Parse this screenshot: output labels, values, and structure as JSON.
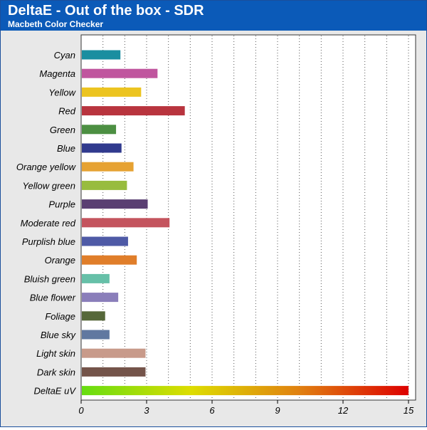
{
  "header": {
    "title": "DeltaE - Out of the box - SDR",
    "subtitle": "Macbeth Color Checker"
  },
  "colors": {
    "header_bg": "#0b5ab8",
    "plot_bg": "#ffffff",
    "frame_bg": "#e8e8e8",
    "grid": "#555555",
    "scale_gradient": [
      "#66dd11",
      "#dddd00",
      "#e08010",
      "#dd0000"
    ]
  },
  "chart_data": {
    "type": "bar",
    "orientation": "horizontal",
    "title": "DeltaE - Out of the box - SDR",
    "subtitle": "Macbeth Color Checker",
    "xlabel": "",
    "ylabel": "",
    "xlim": [
      0,
      15
    ],
    "xticks": [
      0,
      3,
      6,
      9,
      12,
      15
    ],
    "grid": "vertical dotted",
    "categories": [
      "Cyan",
      "Magenta",
      "Yellow",
      "Red",
      "Green",
      "Blue",
      "Orange yellow",
      "Yellow green",
      "Purple",
      "Moderate red",
      "Purplish blue",
      "Orange",
      "Bluish green",
      "Blue flower",
      "Foliage",
      "Blue sky",
      "Light skin",
      "Dark skin",
      "DeltaE uV"
    ],
    "values": [
      1.8,
      3.5,
      2.75,
      4.75,
      1.6,
      1.85,
      2.4,
      2.1,
      3.05,
      4.05,
      2.15,
      2.55,
      1.3,
      1.7,
      1.1,
      1.3,
      2.95,
      2.95,
      15
    ],
    "bar_colors": [
      "#1a8ea0",
      "#c0559e",
      "#ecc420",
      "#b8343e",
      "#4c8f42",
      "#303a8e",
      "#e6a232",
      "#98bc3e",
      "#5a3f72",
      "#c4545e",
      "#4e5aa6",
      "#e07e2a",
      "#66c0a8",
      "#8a7eba",
      "#56683a",
      "#6078a0",
      "#c89a8a",
      "#74544a",
      "gradient"
    ]
  }
}
